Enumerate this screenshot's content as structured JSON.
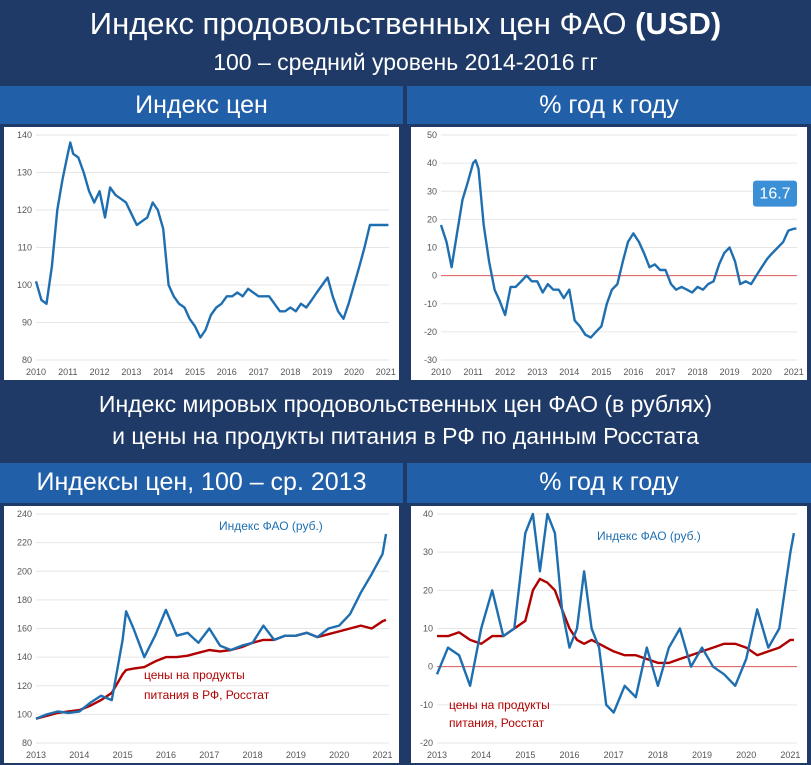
{
  "header": {
    "title_main": "Индекс продовольственных цен ФАО ",
    "title_bold": "(USD)",
    "subtitle": "100 – средний уровень 2014-2016 гг"
  },
  "top_left_label": "Индекс цен",
  "top_right_label": "% год к году",
  "middle": {
    "line1": "Индекс мировых продовольственных цен ФАО (в рублях)",
    "line2": "и цены на продукты питания в РФ по данным Росстата"
  },
  "bottom_left_label": "Индексы цен, 100 – ср. 2013",
  "bottom_right_label": "% год к году",
  "colors": {
    "blue": "#1f6fb0",
    "red": "#b00000",
    "zero_line": "#e05a5a",
    "header_bg": "#1f3a66",
    "cell_bg": "#215fa8"
  },
  "chart_data": [
    {
      "type": "line",
      "x": [
        2010.0,
        2010.17,
        2010.33,
        2010.5,
        2010.67,
        2010.83,
        2011.0,
        2011.08,
        2011.17,
        2011.33,
        2011.5,
        2011.67,
        2011.83,
        2012.0,
        2012.17,
        2012.33,
        2012.5,
        2012.67,
        2012.83,
        2013.0,
        2013.17,
        2013.33,
        2013.5,
        2013.67,
        2013.83,
        2014.0,
        2014.17,
        2014.33,
        2014.5,
        2014.67,
        2014.83,
        2015.0,
        2015.17,
        2015.33,
        2015.5,
        2015.67,
        2015.83,
        2016.0,
        2016.17,
        2016.33,
        2016.5,
        2016.67,
        2016.83,
        2017.0,
        2017.17,
        2017.33,
        2017.5,
        2017.67,
        2017.83,
        2018.0,
        2018.17,
        2018.33,
        2018.5,
        2018.67,
        2018.83,
        2019.0,
        2019.17,
        2019.33,
        2019.5,
        2019.67,
        2019.83,
        2020.0,
        2020.17,
        2020.33,
        2020.5,
        2020.67,
        2020.83,
        2021.0,
        2021.08
      ],
      "series": [
        {
          "values": [
            101,
            96,
            95,
            105,
            120,
            128,
            135,
            138,
            135,
            134,
            130,
            125,
            122,
            125,
            118,
            126,
            124,
            123,
            122,
            119,
            116,
            117,
            118,
            122,
            120,
            115,
            100,
            97,
            95,
            94,
            91,
            89,
            86,
            88,
            92,
            94,
            95,
            97,
            97,
            98,
            97,
            99,
            98,
            97,
            97,
            97,
            95,
            93,
            93,
            94,
            93,
            95,
            94,
            96,
            98,
            100,
            102,
            97,
            93,
            91,
            95,
            100,
            105,
            110,
            116,
            116,
            116,
            116,
            116
          ]
        }
      ],
      "ylim": [
        80,
        140
      ],
      "yticks": [
        80,
        90,
        100,
        110,
        120,
        130,
        140
      ],
      "xticks": [
        "2010",
        "2011",
        "2012",
        "2013",
        "2014",
        "2015",
        "2016",
        "2017",
        "2018",
        "2019",
        "2020",
        "2021"
      ]
    },
    {
      "type": "line",
      "x": [
        2010.0,
        2010.17,
        2010.33,
        2010.5,
        2010.67,
        2010.83,
        2011.0,
        2011.08,
        2011.17,
        2011.33,
        2011.5,
        2011.67,
        2011.83,
        2012.0,
        2012.17,
        2012.33,
        2012.5,
        2012.67,
        2012.83,
        2013.0,
        2013.17,
        2013.33,
        2013.5,
        2013.67,
        2013.83,
        2014.0,
        2014.17,
        2014.33,
        2014.5,
        2014.67,
        2014.83,
        2015.0,
        2015.17,
        2015.33,
        2015.5,
        2015.67,
        2015.83,
        2016.0,
        2016.17,
        2016.33,
        2016.5,
        2016.67,
        2016.83,
        2017.0,
        2017.17,
        2017.33,
        2017.5,
        2017.67,
        2017.83,
        2018.0,
        2018.17,
        2018.33,
        2018.5,
        2018.67,
        2018.83,
        2019.0,
        2019.17,
        2019.33,
        2019.5,
        2019.67,
        2019.83,
        2020.0,
        2020.17,
        2020.33,
        2020.5,
        2020.67,
        2020.83,
        2021.0,
        2021.08
      ],
      "series": [
        {
          "values": [
            18,
            12,
            3,
            15,
            27,
            33,
            40,
            41,
            38,
            18,
            5,
            -5,
            -9,
            -14,
            -4,
            -4,
            -2,
            0,
            -2,
            -2,
            -6,
            -3,
            -5,
            -5,
            -8,
            -5,
            -16,
            -18,
            -21,
            -22,
            -20,
            -18,
            -10,
            -5,
            -3,
            5,
            12,
            15,
            12,
            8,
            3,
            4,
            2,
            2,
            -3,
            -5,
            -4,
            -5,
            -6,
            -4,
            -5,
            -3,
            -2,
            4,
            8,
            10,
            5,
            -3,
            -2,
            -3,
            0,
            3,
            6,
            8,
            10,
            12,
            16,
            16.7,
            16.7
          ]
        }
      ],
      "ylim": [
        -30,
        50
      ],
      "yticks": [
        -30,
        -20,
        -10,
        0,
        10,
        20,
        30,
        40,
        50
      ],
      "xticks": [
        "2010",
        "2011",
        "2012",
        "2013",
        "2014",
        "2015",
        "2016",
        "2017",
        "2018",
        "2019",
        "2020",
        "2021"
      ],
      "last_value_label": "16.7"
    },
    {
      "type": "line",
      "x": [
        2013.0,
        2013.25,
        2013.5,
        2013.75,
        2014.0,
        2014.25,
        2014.5,
        2014.75,
        2015.0,
        2015.08,
        2015.25,
        2015.5,
        2015.75,
        2016.0,
        2016.25,
        2016.5,
        2016.75,
        2017.0,
        2017.25,
        2017.5,
        2017.75,
        2018.0,
        2018.25,
        2018.5,
        2018.75,
        2019.0,
        2019.25,
        2019.5,
        2019.75,
        2020.0,
        2020.25,
        2020.5,
        2020.75,
        2021.0,
        2021.08
      ],
      "series": [
        {
          "name": "Индекс ФАО (руб.)",
          "values": [
            97,
            100,
            102,
            101,
            102,
            108,
            113,
            110,
            152,
            172,
            160,
            140,
            155,
            173,
            155,
            157,
            150,
            160,
            148,
            145,
            148,
            150,
            162,
            152,
            155,
            155,
            157,
            154,
            160,
            162,
            170,
            185,
            198,
            212,
            226
          ]
        },
        {
          "name": "цены на продукты питания в РФ, Росстат",
          "values": [
            97,
            99,
            101,
            102,
            103,
            106,
            110,
            115,
            128,
            131,
            132,
            133,
            137,
            140,
            140,
            141,
            143,
            145,
            144,
            145,
            147,
            150,
            152,
            152,
            155,
            155,
            157,
            154,
            156,
            158,
            160,
            162,
            160,
            165,
            166
          ]
        }
      ],
      "annotations": [
        "Индекс ФАО (руб.)",
        "цены на продукты",
        "питания в РФ, Росстат"
      ],
      "ylim": [
        80,
        240
      ],
      "yticks": [
        80,
        100,
        120,
        140,
        160,
        180,
        200,
        220,
        240
      ],
      "xticks": [
        "2013",
        "2014",
        "2015",
        "2016",
        "2017",
        "2018",
        "2019",
        "2020",
        "2021"
      ]
    },
    {
      "type": "line",
      "x": [
        2013.0,
        2013.25,
        2013.5,
        2013.75,
        2014.0,
        2014.25,
        2014.5,
        2014.75,
        2015.0,
        2015.17,
        2015.33,
        2015.5,
        2015.67,
        2015.83,
        2016.0,
        2016.17,
        2016.33,
        2016.5,
        2016.67,
        2016.83,
        2017.0,
        2017.25,
        2017.5,
        2017.75,
        2018.0,
        2018.25,
        2018.5,
        2018.75,
        2019.0,
        2019.25,
        2019.5,
        2019.75,
        2020.0,
        2020.25,
        2020.5,
        2020.75,
        2021.0,
        2021.08
      ],
      "series": [
        {
          "name": "Индекс ФАО (руб.)",
          "values": [
            -2,
            5,
            3,
            -5,
            10,
            20,
            8,
            10,
            35,
            40,
            25,
            40,
            35,
            15,
            5,
            10,
            25,
            10,
            5,
            -10,
            -12,
            -5,
            -8,
            5,
            -5,
            5,
            10,
            0,
            5,
            0,
            -2,
            -5,
            2,
            15,
            5,
            10,
            30,
            35
          ]
        },
        {
          "name": "цены на продукты питания, Росстат",
          "values": [
            8,
            8,
            9,
            7,
            6,
            8,
            8,
            10,
            12,
            20,
            23,
            22,
            20,
            15,
            10,
            7,
            6,
            7,
            6,
            5,
            4,
            3,
            3,
            2,
            1,
            1,
            2,
            3,
            4,
            5,
            6,
            6,
            5,
            3,
            4,
            5,
            7,
            7
          ]
        }
      ],
      "annotations": [
        "Индекс ФАО (руб.)",
        "цены на продукты",
        "питания, Росстат"
      ],
      "ylim": [
        -20,
        40
      ],
      "yticks": [
        -20,
        -10,
        0,
        10,
        20,
        30,
        40
      ],
      "xticks": [
        "2013",
        "2014",
        "2015",
        "2016",
        "2017",
        "2018",
        "2019",
        "2020",
        "2021"
      ]
    }
  ]
}
